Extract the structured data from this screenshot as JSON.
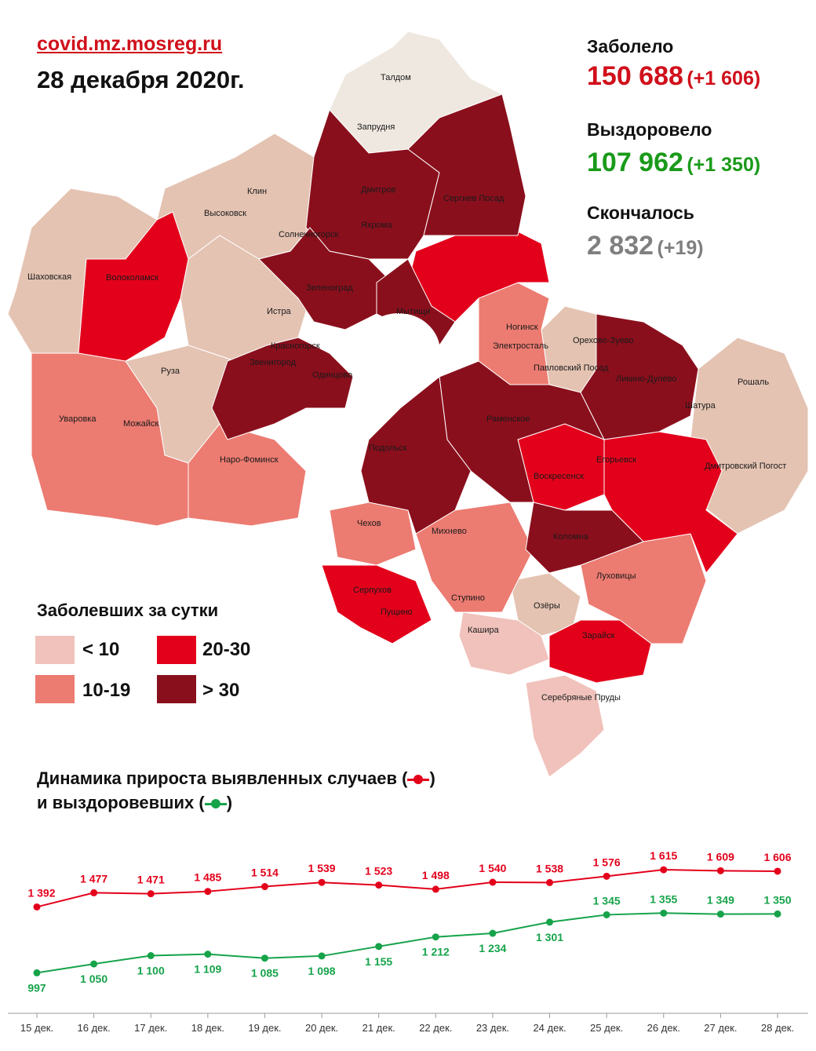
{
  "header": {
    "source": "covid.mz.mosreg.ru",
    "date": "28 декабря 2020г."
  },
  "stats": {
    "infected": {
      "label": "Заболело",
      "value": "150 688",
      "delta": "(+1 606)",
      "color": "#d0101b"
    },
    "recovered": {
      "label": "Выздоровело",
      "value": "107 962",
      "delta": "(+1 350)",
      "color": "#1a9a1a"
    },
    "died": {
      "label": "Скончалось",
      "value": "2 832",
      "delta": "(+19)",
      "color": "#7f7f7f"
    }
  },
  "legend": {
    "title": "Заболевших за сутки",
    "items": [
      {
        "label": "< 10",
        "color": "#f0c2bb"
      },
      {
        "label": "20-30",
        "color": "#e3001b"
      },
      {
        "label": "10-19",
        "color": "#ec7b71"
      },
      {
        "label": "> 30",
        "color": "#8a0f1c"
      }
    ]
  },
  "map": {
    "towns": [
      "Талдом",
      "Запрудня",
      "Дмитров",
      "Яхрома",
      "Сергиев Посад",
      "Клин",
      "Высоковск",
      "Солнечногорск",
      "Шаховская",
      "Волоколамск",
      "Истра",
      "Зеленоград",
      "Мытищи",
      "Красногорск",
      "Ногинск",
      "Электросталь",
      "Орехово-Зуево",
      "Павловский Посад",
      "Ликино-Дулёво",
      "Рошаль",
      "Звенигород",
      "Руза",
      "Одинцово",
      "Шатура",
      "Уваровка",
      "Можайск",
      "Раменское",
      "Наро-Фоминск",
      "Подольск",
      "Воскресенск",
      "Егорьевск",
      "Дмитровский Погост",
      "Чехов",
      "Михнево",
      "Коломна",
      "Серпухов",
      "Пущино",
      "Ступино",
      "Луховицы",
      "Озёры",
      "Кашира",
      "Зарайск",
      "Серебряные Пруды"
    ]
  },
  "chart_title": {
    "line1": "Динамика прироста выявленных случаев (",
    "line1_end": ")",
    "line2": "и выздоровевших (",
    "line2_end": ")"
  },
  "chart_data": {
    "type": "line",
    "x": [
      "15 дек.",
      "16 дек.",
      "17 дек.",
      "18 дек.",
      "19 дек.",
      "20 дек.",
      "21 дек.",
      "22 дек.",
      "23 дек.",
      "24 дек.",
      "25 дек.",
      "26 дек.",
      "27 дек.",
      "28 дек."
    ],
    "series": [
      {
        "color": "#e3001b",
        "values": [
          1392,
          1477,
          1471,
          1485,
          1514,
          1539,
          1523,
          1498,
          1540,
          1538,
          1576,
          1615,
          1609,
          1606
        ],
        "labels": [
          "1 392",
          "1 477",
          "1 471",
          "1 485",
          "1 514",
          "1 539",
          "1 523",
          "1 498",
          "1 540",
          "1 538",
          "1 576",
          "1 615",
          "1 609",
          "1 606"
        ]
      },
      {
        "color": "#16a34a",
        "values": [
          997,
          1050,
          1100,
          1109,
          1085,
          1098,
          1155,
          1212,
          1234,
          1301,
          1345,
          1355,
          1349,
          1350
        ],
        "labels": [
          "997",
          "1 050",
          "1 100",
          "1 109",
          "1 085",
          "1 098",
          "1 155",
          "1 212",
          "1 234",
          "1 301",
          "1 345",
          "1 355",
          "1 349",
          "1 350"
        ]
      }
    ],
    "ylim": [
      900,
      1700
    ]
  }
}
